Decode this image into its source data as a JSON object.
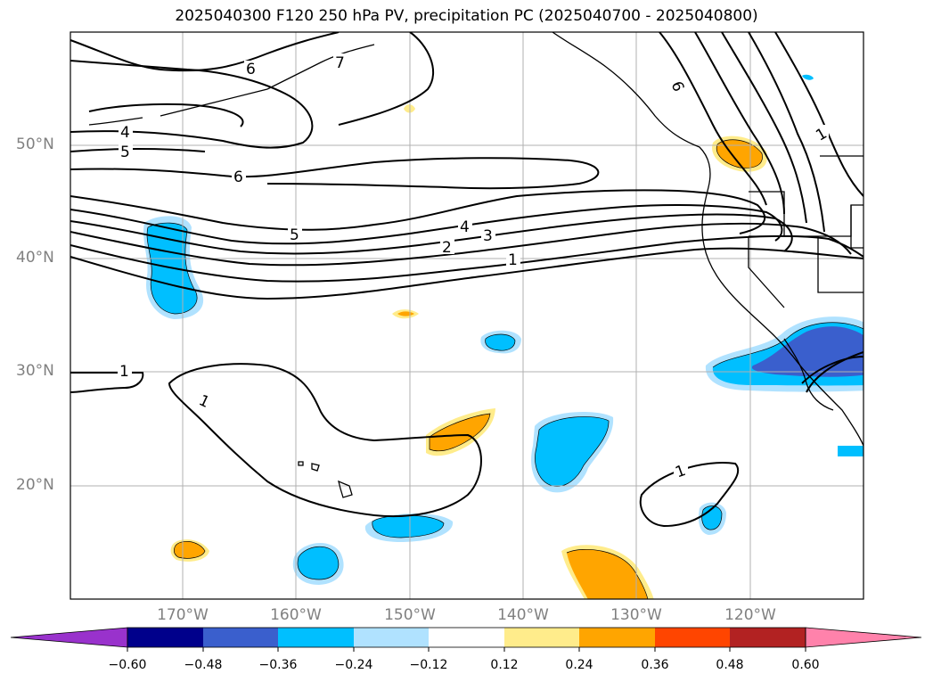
{
  "title": "2025040300 F120 250 hPa PV, precipitation PC (2025040700 - 2025040800)",
  "lat_labels": [
    "50°N",
    "40°N",
    "30°N",
    "20°N"
  ],
  "lon_labels": [
    "170°W",
    "160°W",
    "150°W",
    "140°W",
    "130°W",
    "120°W"
  ],
  "colorbar": {
    "ticks": [
      "−0.60",
      "−0.48",
      "−0.36",
      "−0.24",
      "−0.12",
      "0.12",
      "0.24",
      "0.36",
      "0.48",
      "0.60"
    ],
    "colors": [
      "#9932cc",
      "#00008b",
      "#3a5fcd",
      "#00bfff",
      "#b0e2ff",
      "#ffffff",
      "#ffec8b",
      "#ffa500",
      "#ff4500",
      "#b22222",
      "#ff82ab"
    ]
  },
  "contour_labels": [
    "6",
    "7",
    "4",
    "5",
    "6",
    "5",
    "4",
    "3",
    "2",
    "1",
    "6",
    "1",
    "1",
    "1",
    "1"
  ]
}
